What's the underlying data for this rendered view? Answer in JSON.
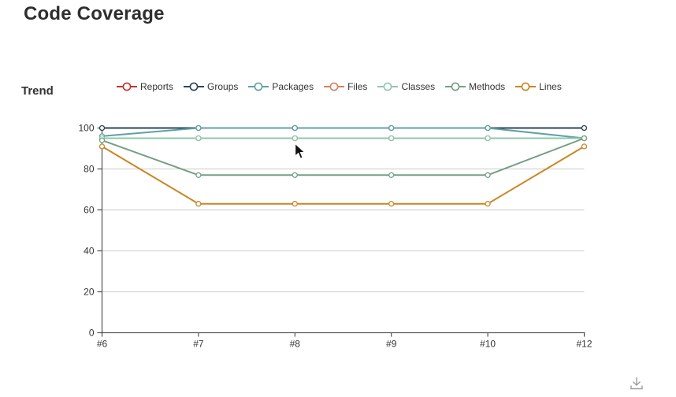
{
  "page": {
    "title": "Code Coverage"
  },
  "trend": {
    "title": "Trend"
  },
  "chart_data": {
    "type": "line",
    "title": "Trend",
    "categories": [
      "#6",
      "#7",
      "#8",
      "#9",
      "#10",
      "#12"
    ],
    "series": [
      {
        "name": "Reports",
        "color": "#c23531",
        "values": [
          95,
          95,
          95,
          95,
          95,
          95
        ]
      },
      {
        "name": "Groups",
        "color": "#2f4554",
        "values": [
          100,
          100,
          100,
          100,
          100,
          100
        ]
      },
      {
        "name": "Packages",
        "color": "#61a0a8",
        "values": [
          96,
          100,
          100,
          100,
          100,
          95
        ]
      },
      {
        "name": "Files",
        "color": "#d48265",
        "values": [
          95,
          95,
          95,
          95,
          95,
          95
        ]
      },
      {
        "name": "Classes",
        "color": "#91c7ae",
        "values": [
          95,
          95,
          95,
          95,
          95,
          95
        ]
      },
      {
        "name": "Methods",
        "color": "#749f83",
        "values": [
          94,
          77,
          77,
          77,
          77,
          95
        ]
      },
      {
        "name": "Lines",
        "color": "#ca8622",
        "values": [
          91,
          63,
          63,
          63,
          63,
          91
        ]
      }
    ],
    "xlabel": "",
    "ylabel": "",
    "ylim": [
      0,
      100
    ],
    "yticks": [
      0,
      20,
      40,
      60,
      80,
      100
    ],
    "grid": true,
    "legend_position": "top",
    "axis_color": "#333333",
    "grid_color": "#cccccc",
    "marker": "hollow-circle"
  },
  "toolbox": {
    "download_label": "save-as-image",
    "icon_color": "#9e9e9e"
  }
}
